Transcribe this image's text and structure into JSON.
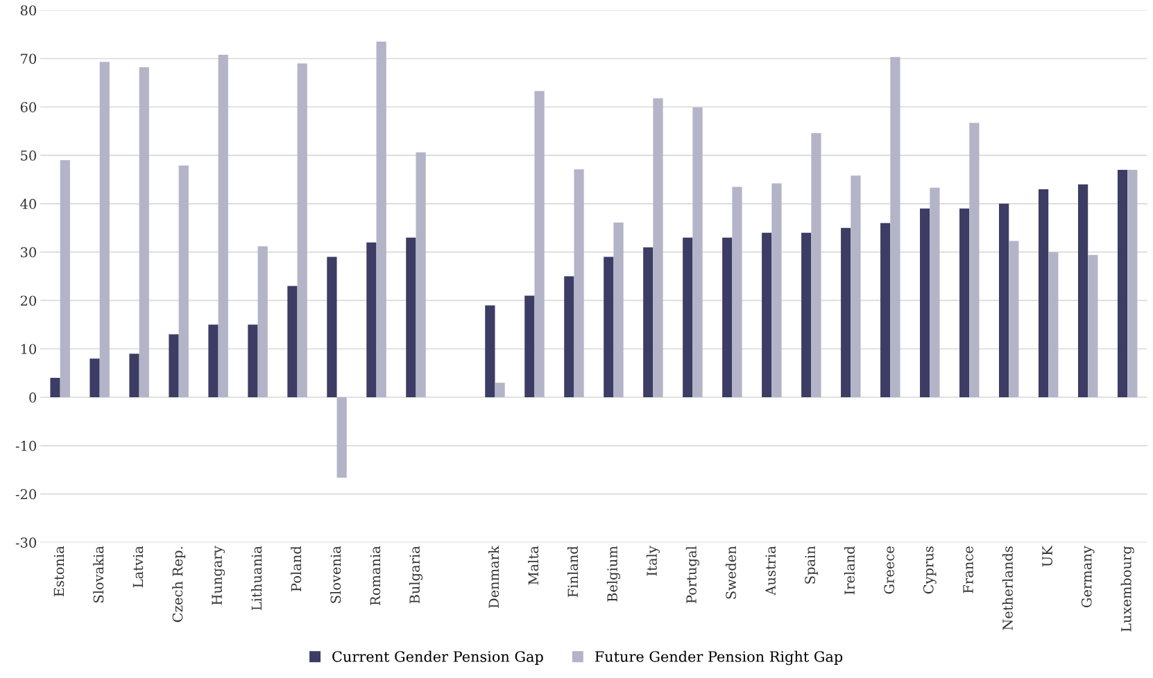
{
  "chart_data": {
    "type": "bar",
    "categories": [
      "Estonia",
      "Slovakia",
      "Latvia",
      "Czech Rep.",
      "Hungary",
      "Lithuania",
      "Poland",
      "Slovenia",
      "Romania",
      "Bulgaria",
      null,
      "Denmark",
      "Malta",
      "Finland",
      "Belgium",
      "Italy",
      "Portugal",
      "Sweden",
      "Austria",
      "Spain",
      "Ireland",
      "Greece",
      "Cyprus",
      "France",
      "Netherlands",
      "UK",
      "Germany",
      "Luxembourg"
    ],
    "series": [
      {
        "name": "Current Gender Pension Gap",
        "color": "#3c3c64",
        "values": [
          4,
          8,
          9,
          13,
          15,
          15,
          23,
          29,
          32,
          33,
          null,
          19,
          21,
          25,
          29,
          31,
          33,
          33,
          34,
          34,
          35,
          36,
          39,
          39,
          40,
          43,
          44,
          47
        ]
      },
      {
        "name": "Future Gender Pension Right Gap",
        "color": "#b4b4c8",
        "values": [
          49.0,
          69.3,
          68.2,
          47.9,
          70.8,
          31.2,
          69.0,
          -16.6,
          73.5,
          50.6,
          null,
          3.0,
          63.3,
          47.1,
          36.1,
          61.8,
          59.9,
          43.5,
          44.2,
          54.6,
          45.8,
          70.3,
          43.3,
          56.7,
          32.3,
          30.0,
          29.4,
          47.0
        ]
      }
    ],
    "ylim": [
      -30,
      80
    ],
    "yticks": [
      -30,
      -20,
      -10,
      0,
      10,
      20,
      30,
      40,
      50,
      60,
      70,
      80
    ],
    "grid": "y",
    "legend": "bottom"
  }
}
